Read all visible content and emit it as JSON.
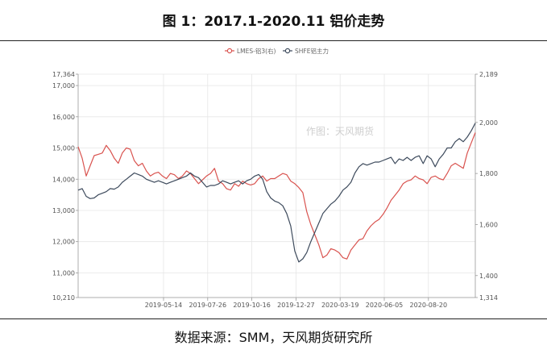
{
  "figure_title": "图 1：2017.1-2020.11 铝价走势",
  "source": "数据来源：SMM，天风期货研究所",
  "watermark": "作图：天风期货",
  "colors": {
    "lme": "#d9534f",
    "shfe": "#3d4a5c",
    "grid": "#e6e6e6",
    "axis": "#999999"
  },
  "chart_data": {
    "type": "line",
    "title": "",
    "x_labels": [
      "2019-05-14",
      "2019-07-26",
      "2019-10-16",
      "2019-12-27",
      "2020-03-19",
      "2020-06-05",
      "2020-08-20"
    ],
    "left_axis": {
      "min": 10210,
      "max": 17364,
      "ticks": [
        "10,210",
        "11,000",
        "12,000",
        "13,000",
        "14,000",
        "15,000",
        "16,000",
        "17,000",
        "17,364"
      ]
    },
    "right_axis": {
      "min": 1314,
      "max": 2189,
      "ticks": [
        "1,314",
        "1,400",
        "1,600",
        "1,800",
        "2,000",
        "2,189"
      ]
    },
    "legend_position": "top-center",
    "grid": true,
    "series": [
      {
        "name": "LMES-铝3(右)",
        "axis": "right",
        "color": "#d9534f",
        "values": [
          1905,
          1860,
          1790,
          1830,
          1870,
          1875,
          1880,
          1910,
          1890,
          1860,
          1840,
          1880,
          1900,
          1895,
          1850,
          1830,
          1840,
          1810,
          1790,
          1800,
          1805,
          1790,
          1780,
          1800,
          1795,
          1780,
          1790,
          1810,
          1800,
          1780,
          1760,
          1775,
          1790,
          1800,
          1820,
          1770,
          1760,
          1740,
          1735,
          1760,
          1750,
          1770,
          1760,
          1755,
          1760,
          1780,
          1790,
          1770,
          1780,
          1780,
          1790,
          1800,
          1795,
          1770,
          1760,
          1745,
          1725,
          1650,
          1600,
          1560,
          1520,
          1470,
          1480,
          1505,
          1500,
          1490,
          1470,
          1465,
          1500,
          1520,
          1540,
          1545,
          1575,
          1595,
          1610,
          1620,
          1640,
          1665,
          1695,
          1715,
          1735,
          1760,
          1770,
          1775,
          1790,
          1780,
          1775,
          1760,
          1785,
          1790,
          1780,
          1775,
          1800,
          1830,
          1840,
          1830,
          1820,
          1880,
          1920,
          1960
        ]
      },
      {
        "name": "SHFE铝主力",
        "axis": "left",
        "color": "#3d4a5c",
        "values": [
          13650,
          13700,
          13450,
          13380,
          13400,
          13500,
          13550,
          13600,
          13700,
          13680,
          13750,
          13900,
          14000,
          14100,
          14200,
          14150,
          14100,
          14000,
          13950,
          13900,
          13950,
          13900,
          13850,
          13900,
          13950,
          14000,
          14050,
          14100,
          14200,
          14100,
          14050,
          13900,
          13750,
          13800,
          13800,
          13850,
          13950,
          13900,
          13850,
          13900,
          13950,
          13850,
          13950,
          14000,
          14100,
          14150,
          14000,
          13600,
          13400,
          13300,
          13250,
          13150,
          12900,
          12500,
          11700,
          11350,
          11450,
          11650,
          12000,
          12300,
          12600,
          12900,
          13050,
          13200,
          13300,
          13450,
          13650,
          13750,
          13900,
          14200,
          14400,
          14500,
          14450,
          14500,
          14550,
          14550,
          14600,
          14650,
          14700,
          14500,
          14650,
          14600,
          14700,
          14600,
          14700,
          14750,
          14500,
          14750,
          14650,
          14400,
          14650,
          14800,
          15000,
          15000,
          15200,
          15300,
          15200,
          15350,
          15550,
          15800
        ]
      }
    ]
  }
}
